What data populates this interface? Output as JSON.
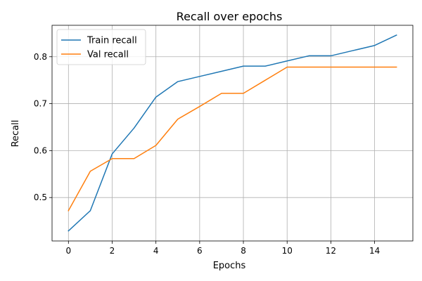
{
  "chart_data": {
    "type": "line",
    "title": "Recall over epochs",
    "xlabel": "Epochs",
    "ylabel": "Recall",
    "xlim": [
      -0.75,
      15.75
    ],
    "ylim": [
      0.4075,
      0.867
    ],
    "xticks": [
      0,
      2,
      4,
      6,
      8,
      10,
      12,
      14
    ],
    "yticks": [
      0.5,
      0.6,
      0.7,
      0.8
    ],
    "xtick_labels": [
      "0",
      "2",
      "4",
      "6",
      "8",
      "10",
      "12",
      "14"
    ],
    "ytick_labels": [
      "0.5",
      "0.6",
      "0.7",
      "0.8"
    ],
    "grid": true,
    "legend_position": "top-left",
    "x": [
      0,
      1,
      2,
      3,
      4,
      5,
      6,
      7,
      8,
      9,
      10,
      11,
      12,
      13,
      14,
      15
    ],
    "series": [
      {
        "name": "Train recall",
        "color": "#1f77b4",
        "values": [
          0.429,
          0.472,
          0.593,
          0.648,
          0.714,
          0.747,
          0.758,
          0.769,
          0.78,
          0.78,
          0.791,
          0.802,
          0.802,
          0.813,
          0.824,
          0.846
        ]
      },
      {
        "name": "Val recall",
        "color": "#ff7f0e",
        "values": [
          0.472,
          0.556,
          0.583,
          0.583,
          0.611,
          0.667,
          0.694,
          0.722,
          0.722,
          0.75,
          0.778,
          0.778,
          0.778,
          0.778,
          0.778,
          0.778
        ]
      }
    ]
  }
}
